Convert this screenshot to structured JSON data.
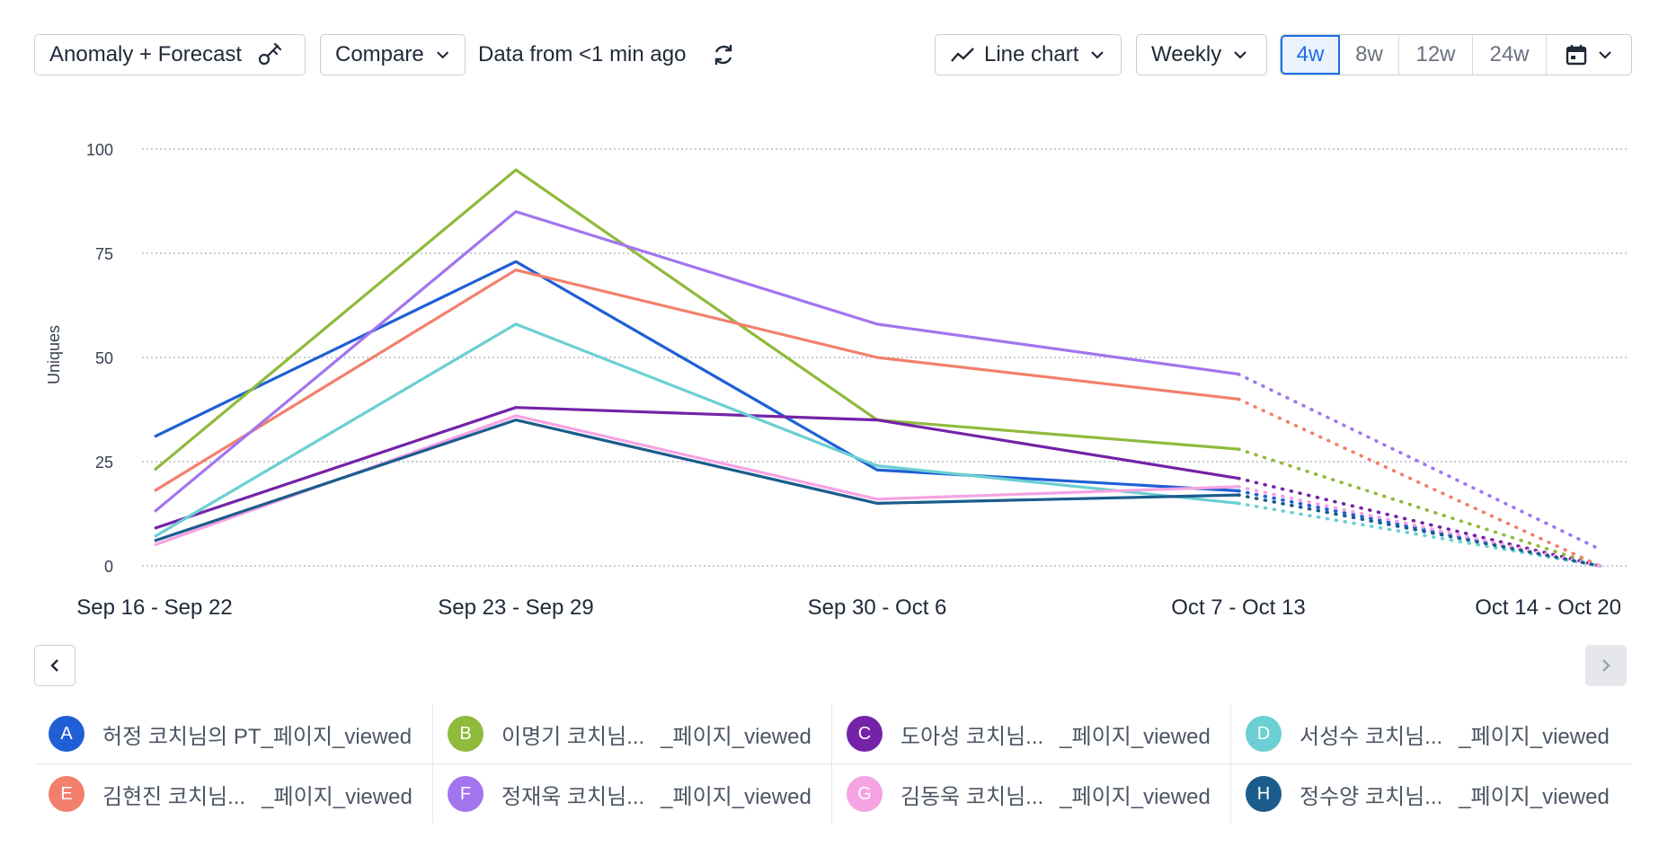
{
  "toolbar": {
    "anomaly_label": "Anomaly + Forecast",
    "compare_label": "Compare",
    "data_status": "Data from <1 min ago",
    "chart_type_label": "Line chart",
    "interval_label": "Weekly",
    "ranges": [
      "4w",
      "8w",
      "12w",
      "24w"
    ],
    "active_range": "4w"
  },
  "colors": {
    "A": "#1f5fd6",
    "B": "#8fba3c",
    "C": "#7422a8",
    "D": "#6bcfd3",
    "E": "#f2806c",
    "F": "#a275ee",
    "G": "#f5a3e3",
    "H": "#1b5c8c"
  },
  "chart_data": {
    "type": "line",
    "ylabel": "Uniques",
    "yticks": [
      0,
      25,
      50,
      75,
      100
    ],
    "ylim": [
      0,
      100
    ],
    "categories": [
      "Sep 16 - Sep 22",
      "Sep 23 - Sep 29",
      "Sep 30 - Oct 6",
      "Oct 7 - Oct 13",
      "Oct 14 - Oct 20"
    ],
    "forecast_from_index": 3,
    "series": [
      {
        "id": "A",
        "values": [
          31,
          73,
          23,
          18,
          0
        ]
      },
      {
        "id": "B",
        "values": [
          23,
          95,
          35,
          28,
          0
        ]
      },
      {
        "id": "C",
        "values": [
          9,
          38,
          35,
          21,
          0
        ]
      },
      {
        "id": "D",
        "values": [
          7,
          58,
          24,
          15,
          0
        ]
      },
      {
        "id": "E",
        "values": [
          18,
          71,
          50,
          40,
          0
        ]
      },
      {
        "id": "F",
        "values": [
          13,
          85,
          58,
          46,
          4
        ]
      },
      {
        "id": "G",
        "values": [
          5,
          36,
          16,
          19,
          0
        ]
      },
      {
        "id": "H",
        "values": [
          6,
          35,
          15,
          17,
          0
        ]
      }
    ]
  },
  "legend": [
    {
      "letter": "A",
      "name": "허정 코치님의 PT_페이지_viewed",
      "suffix": ""
    },
    {
      "letter": "B",
      "name": "이명기 코치님...",
      "suffix": "_페이지_viewed"
    },
    {
      "letter": "C",
      "name": "도아성 코치님...",
      "suffix": "_페이지_viewed"
    },
    {
      "letter": "D",
      "name": "서성수 코치님...",
      "suffix": "_페이지_viewed"
    },
    {
      "letter": "E",
      "name": "김현진 코치님...",
      "suffix": "_페이지_viewed"
    },
    {
      "letter": "F",
      "name": "정재욱 코치님...",
      "suffix": "_페이지_viewed"
    },
    {
      "letter": "G",
      "name": "김동욱 코치님...",
      "suffix": "_페이지_viewed"
    },
    {
      "letter": "H",
      "name": "정수양 코치님...",
      "suffix": "_페이지_viewed"
    }
  ]
}
